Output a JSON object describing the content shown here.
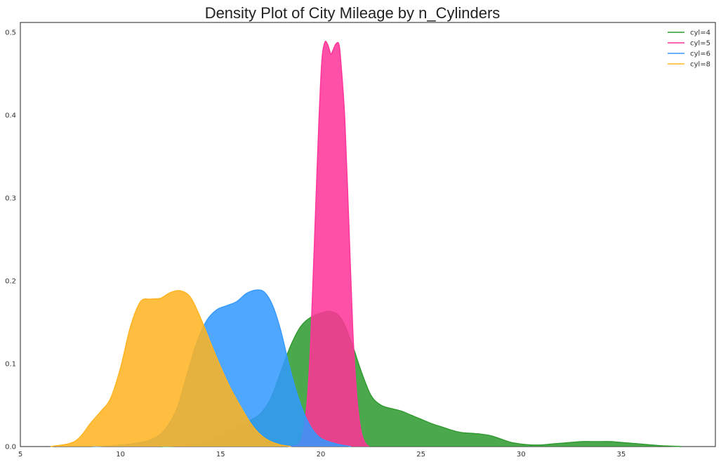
{
  "chart_data": {
    "type": "area",
    "title": "Density Plot of City Mileage by n_Cylinders",
    "xlabel": "",
    "ylabel": "",
    "xlim": [
      5,
      39.7
    ],
    "ylim": [
      0,
      0.512
    ],
    "xticks": [
      "5",
      "10",
      "15",
      "20",
      "25",
      "30",
      "35"
    ],
    "yticks": [
      "0.0",
      "0.1",
      "0.2",
      "0.3",
      "0.4",
      "0.5"
    ],
    "grid": false,
    "legend_position": "top-right",
    "series": [
      {
        "name": "cyl=4",
        "color": "#2e9a2e",
        "x": [
          12.0,
          13.0,
          14.0,
          14.5,
          15.0,
          15.5,
          16.0,
          16.5,
          17.0,
          17.5,
          18.0,
          18.5,
          19.0,
          19.5,
          20.0,
          20.5,
          21.0,
          21.5,
          22.0,
          22.5,
          23.0,
          23.5,
          24.0,
          24.5,
          25.0,
          25.5,
          26.0,
          26.5,
          27.0,
          27.5,
          28.0,
          28.5,
          29.0,
          29.5,
          30.0,
          30.5,
          31.0,
          31.5,
          32.0,
          32.5,
          33.0,
          33.5,
          34.0,
          34.5,
          35.0,
          35.5,
          36.0,
          36.5,
          37.0,
          37.5,
          38.0
        ],
        "y": [
          0.0,
          0.001,
          0.004,
          0.008,
          0.014,
          0.02,
          0.026,
          0.032,
          0.04,
          0.058,
          0.09,
          0.122,
          0.145,
          0.156,
          0.161,
          0.163,
          0.155,
          0.128,
          0.092,
          0.062,
          0.05,
          0.046,
          0.043,
          0.038,
          0.033,
          0.028,
          0.024,
          0.02,
          0.017,
          0.016,
          0.015,
          0.013,
          0.009,
          0.005,
          0.003,
          0.002,
          0.002,
          0.003,
          0.004,
          0.005,
          0.006,
          0.006,
          0.006,
          0.006,
          0.005,
          0.004,
          0.003,
          0.002,
          0.001,
          0.0005,
          0.0
        ]
      },
      {
        "name": "cyl=5",
        "color": "#ff3399",
        "x": [
          18.5,
          19.0,
          19.3,
          19.5,
          19.7,
          19.9,
          20.05,
          20.2,
          20.35,
          20.5,
          20.6,
          20.75,
          20.9,
          21.0,
          21.2,
          21.4,
          21.6,
          21.8,
          22.0,
          22.2,
          22.4
        ],
        "y": [
          0.0,
          0.006,
          0.05,
          0.13,
          0.26,
          0.39,
          0.465,
          0.488,
          0.485,
          0.474,
          0.478,
          0.486,
          0.486,
          0.465,
          0.395,
          0.27,
          0.14,
          0.06,
          0.02,
          0.005,
          0.0
        ]
      },
      {
        "name": "cyl=6",
        "color": "#3399ff",
        "x": [
          8.6,
          9.5,
          10.5,
          11.5,
          12.2,
          12.8,
          13.3,
          13.8,
          14.3,
          14.8,
          15.3,
          15.8,
          16.3,
          16.8,
          17.2,
          17.6,
          18.0,
          18.4,
          18.8,
          19.2,
          19.6,
          20.0,
          20.5,
          21.0,
          21.5
        ],
        "y": [
          0.0,
          0.001,
          0.003,
          0.008,
          0.02,
          0.045,
          0.085,
          0.125,
          0.152,
          0.165,
          0.17,
          0.175,
          0.185,
          0.189,
          0.186,
          0.17,
          0.14,
          0.1,
          0.065,
          0.038,
          0.02,
          0.01,
          0.005,
          0.002,
          0.0
        ]
      },
      {
        "name": "cyl=8",
        "color": "#ffb320",
        "x": [
          6.5,
          7.5,
          8.0,
          8.5,
          9.0,
          9.5,
          10.0,
          10.5,
          11.0,
          11.5,
          12.0,
          12.5,
          13.0,
          13.5,
          14.0,
          14.5,
          15.0,
          15.5,
          16.0,
          16.5,
          17.0,
          17.5,
          18.0,
          18.5
        ],
        "y": [
          0.0,
          0.004,
          0.012,
          0.028,
          0.042,
          0.058,
          0.095,
          0.145,
          0.175,
          0.178,
          0.179,
          0.186,
          0.188,
          0.18,
          0.155,
          0.125,
          0.096,
          0.07,
          0.048,
          0.028,
          0.014,
          0.006,
          0.002,
          0.0
        ]
      }
    ]
  }
}
